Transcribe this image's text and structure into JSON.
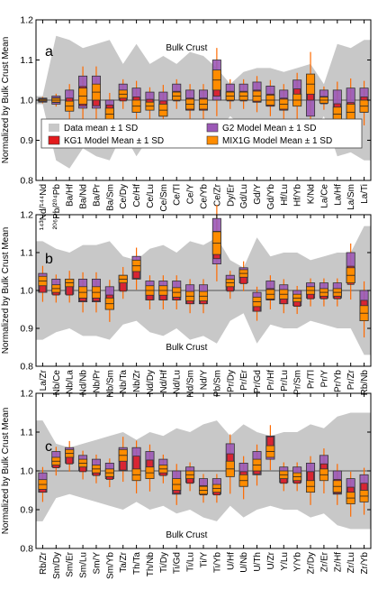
{
  "colors": {
    "band": "#c8c8c8",
    "g2": "#9b59b6",
    "kg1": "#e31a1c",
    "mix1g": "#ff8c00",
    "whisker": "#ff6a00",
    "mean_line": "#555555"
  },
  "legend": [
    {
      "key": "band",
      "label": "Data mean ± 1 SD"
    },
    {
      "key": "g2",
      "label": "G2 Model Mean ± 1 SD"
    },
    {
      "key": "kg1",
      "label": "KG1 Model Mean ± 1 SD"
    },
    {
      "key": "mix1g",
      "label": "MIX1G Model Mean ± 1 SD"
    }
  ],
  "chart_data": [
    {
      "type": "box",
      "panel": "a",
      "ylabel": "Normalized by Bulk Crust Mean",
      "ylim": [
        0.8,
        1.2
      ],
      "yticks": [
        "0.8",
        "0.9",
        "1.0",
        "1.1",
        "1.2"
      ],
      "annotation": "Bulk Crust",
      "categories": [
        "¹⁴³Nd/¹⁴⁴Nd",
        "²⁰⁶Pb/²⁰⁴Pb",
        "Ba/Hf",
        "Ba/Nd",
        "Ba/Pr",
        "Ba/Sm",
        "Ce/Dy",
        "Ce/Hf",
        "Ce/Lu",
        "Ce/Sm",
        "Ce/Tl",
        "Ce/Y",
        "Ce/Yb",
        "Ce/Zr",
        "Dy/Er",
        "Gd/Lu",
        "Gd/Y",
        "Gd/Yb",
        "Hf/Lu",
        "Hf/Yb",
        "K/Nd",
        "La/Ce",
        "La/Hf",
        "La/Sm",
        "La/Ti"
      ],
      "band_low": [
        0.99,
        0.85,
        0.83,
        0.88,
        0.86,
        0.85,
        0.92,
        0.86,
        0.91,
        0.89,
        0.91,
        0.88,
        0.89,
        0.92,
        0.96,
        0.93,
        0.92,
        0.92,
        0.93,
        0.92,
        0.91,
        0.96,
        0.86,
        0.87,
        0.85
      ],
      "band_high": [
        1.01,
        1.16,
        1.15,
        1.13,
        1.14,
        1.15,
        1.09,
        1.14,
        1.09,
        1.11,
        1.09,
        1.12,
        1.11,
        1.08,
        1.04,
        1.07,
        1.08,
        1.08,
        1.07,
        1.08,
        1.09,
        1.04,
        1.14,
        1.13,
        1.15
      ],
      "g2": [
        1.0,
        1.0,
        1.0,
        1.02,
        1.02,
        0.97,
        1.02,
        1.0,
        1.0,
        0.99,
        1.02,
        1.0,
        1.0,
        1.05,
        1.02,
        1.02,
        1.02,
        1.01,
        1.0,
        1.02,
        1.01,
        1.01,
        0.99,
        0.99,
        1.0
      ],
      "kg1": [
        1.0,
        1.0,
        0.99,
        1.01,
        1.01,
        0.97,
        1.01,
        0.99,
        0.99,
        0.98,
        1.01,
        0.99,
        0.99,
        1.04,
        1.01,
        1.01,
        1.01,
        1.0,
        0.99,
        1.01,
        1.03,
        1.0,
        0.97,
        0.97,
        0.99
      ],
      "mix1g": [
        1.0,
        1.0,
        0.985,
        1.01,
        1.02,
        0.965,
        1.015,
        0.985,
        0.985,
        0.975,
        1.01,
        0.99,
        0.99,
        1.05,
        1.01,
        1.01,
        1.01,
        1.0,
        0.99,
        1.0,
        1.04,
        1.0,
        0.965,
        0.97,
        0.985
      ],
      "sd": [
        0.005,
        0.01,
        0.025,
        0.04,
        0.04,
        0.03,
        0.02,
        0.03,
        0.02,
        0.03,
        0.02,
        0.025,
        0.025,
        0.05,
        0.02,
        0.02,
        0.025,
        0.025,
        0.025,
        0.03,
        0.05,
        0.015,
        0.035,
        0.04,
        0.03
      ]
    },
    {
      "type": "box",
      "panel": "b",
      "ylabel": "Normalized by Bulk Crust Mean",
      "ylim": [
        0.8,
        1.2
      ],
      "yticks": [
        "0.8",
        "0.9",
        "1.0",
        "1.1",
        "1.2"
      ],
      "annotation": "Bulk Crust",
      "categories": [
        "La/Zr",
        "Nb/Ce",
        "Nb/La",
        "Nd/Nb",
        "Nb/Pr",
        "Nb/Sm",
        "Nb/Ta",
        "Nb/Zr",
        "Nd/Dy",
        "Nd/Hf",
        "Nd/Lu",
        "Nd/Sm",
        "Nd/Y",
        "Pb/Sm",
        "Pr/Dy",
        "Pr/Er",
        "Pr/Gd",
        "Pr/Hf",
        "Pr/Lu",
        "Pr/Sm",
        "Pr/Tl",
        "Pr/Y",
        "Pr/Yb",
        "Pr/Zr",
        "Rb/Nb"
      ],
      "band_low": [
        0.87,
        0.89,
        0.9,
        0.88,
        0.88,
        0.87,
        0.91,
        0.92,
        0.89,
        0.88,
        0.9,
        0.87,
        0.88,
        0.86,
        0.92,
        0.94,
        0.86,
        0.91,
        0.9,
        0.9,
        0.92,
        0.91,
        0.9,
        0.9,
        0.83
      ],
      "band_high": [
        1.13,
        1.11,
        1.1,
        1.12,
        1.12,
        1.13,
        1.09,
        1.08,
        1.11,
        1.12,
        1.1,
        1.13,
        1.12,
        1.14,
        1.08,
        1.06,
        1.14,
        1.09,
        1.1,
        1.1,
        1.08,
        1.09,
        1.1,
        1.1,
        1.17
      ],
      "g2": [
        1.02,
        1.01,
        1.01,
        1.0,
        1.0,
        0.98,
        1.02,
        1.06,
        1.0,
        1.0,
        1.0,
        0.99,
        0.99,
        1.13,
        1.02,
        1.04,
        0.97,
        1.0,
        0.99,
        0.98,
        1.0,
        1.0,
        1.0,
        1.06,
        0.96
      ],
      "kg1": [
        1.01,
        1.0,
        1.0,
        0.99,
        0.99,
        0.97,
        1.01,
        1.05,
        0.99,
        0.99,
        0.99,
        0.98,
        0.98,
        1.12,
        1.01,
        1.03,
        0.96,
        0.99,
        0.98,
        0.97,
        0.99,
        0.99,
        0.99,
        1.04,
        0.95
      ],
      "mix1g": [
        1.025,
        1.005,
        1.02,
        0.995,
        0.995,
        0.965,
        1.03,
        1.065,
        1.0,
        1.0,
        0.995,
        0.985,
        0.985,
        1.125,
        1.02,
        1.045,
        0.97,
        0.99,
        0.99,
        0.98,
        1.0,
        0.995,
        0.995,
        1.04,
        0.94
      ],
      "sd": [
        0.025,
        0.02,
        0.02,
        0.03,
        0.03,
        0.03,
        0.02,
        0.03,
        0.025,
        0.025,
        0.025,
        0.025,
        0.025,
        0.06,
        0.02,
        0.02,
        0.025,
        0.025,
        0.025,
        0.02,
        0.02,
        0.02,
        0.02,
        0.04,
        0.04
      ]
    },
    {
      "type": "box",
      "panel": "c",
      "ylabel": "Normalized by Bulk Crust Mean",
      "ylim": [
        0.8,
        1.2
      ],
      "yticks": [
        "0.8",
        "0.9",
        "1.0",
        "1.1",
        "1.2"
      ],
      "annotation": "Bulk Crust",
      "categories": [
        "Rb/Zr",
        "Sm/Dy",
        "Sm/Er",
        "Sm/Lu",
        "Sm/Y",
        "Sm/Yb",
        "Ta/Zr",
        "Th/Ta",
        "Th/Nb",
        "Ti/Dy",
        "Ti/Gd",
        "Ti/Lu",
        "Ti/Y",
        "Ti/Yb",
        "U/Hf",
        "U/Nb",
        "U/Th",
        "U/Zr",
        "Y/Lu",
        "Y/Yb",
        "Zr/Dy",
        "Zr/Er",
        "Zr/Hf",
        "Zr/Lu",
        "Zr/Yb"
      ],
      "band_low": [
        0.87,
        0.93,
        0.94,
        0.93,
        0.92,
        0.91,
        0.9,
        0.92,
        0.9,
        0.91,
        0.89,
        0.9,
        0.88,
        0.87,
        0.91,
        0.88,
        0.9,
        0.91,
        0.9,
        0.9,
        0.88,
        0.89,
        0.86,
        0.85,
        0.85
      ],
      "band_high": [
        1.13,
        1.07,
        1.06,
        1.07,
        1.08,
        1.09,
        1.1,
        1.08,
        1.1,
        1.09,
        1.11,
        1.1,
        1.12,
        1.13,
        1.09,
        1.12,
        1.1,
        1.09,
        1.1,
        1.1,
        1.12,
        1.11,
        1.14,
        1.15,
        1.15
      ],
      "g2": [
        0.97,
        1.03,
        1.04,
        1.02,
        1.01,
        1.0,
        1.03,
        1.03,
        1.02,
        1.01,
        0.97,
        0.99,
        0.96,
        0.96,
        1.03,
        0.99,
        1.02,
        1.06,
        0.99,
        0.99,
        0.99,
        1.01,
        0.97,
        0.95,
        0.96
      ],
      "kg1": [
        0.96,
        1.02,
        1.03,
        1.01,
        1.0,
        0.99,
        1.02,
        1.02,
        1.01,
        1.0,
        0.96,
        0.98,
        0.95,
        0.95,
        1.02,
        0.98,
        1.01,
        1.07,
        0.98,
        0.98,
        0.98,
        1.0,
        0.96,
        0.94,
        0.95
      ],
      "mix1g": [
        0.965,
        1.025,
        1.045,
        1.02,
        1.005,
        0.995,
        1.04,
        0.99,
        0.995,
        1.005,
        0.965,
        0.99,
        0.95,
        0.955,
        1.005,
        0.975,
        1.015,
        1.05,
        0.99,
        0.985,
        0.96,
        0.99,
        0.96,
        0.93,
        0.935
      ],
      "sd": [
        0.025,
        0.02,
        0.02,
        0.02,
        0.02,
        0.02,
        0.03,
        0.03,
        0.03,
        0.02,
        0.03,
        0.02,
        0.02,
        0.02,
        0.04,
        0.03,
        0.03,
        0.03,
        0.02,
        0.02,
        0.03,
        0.03,
        0.03,
        0.03,
        0.03
      ]
    }
  ]
}
